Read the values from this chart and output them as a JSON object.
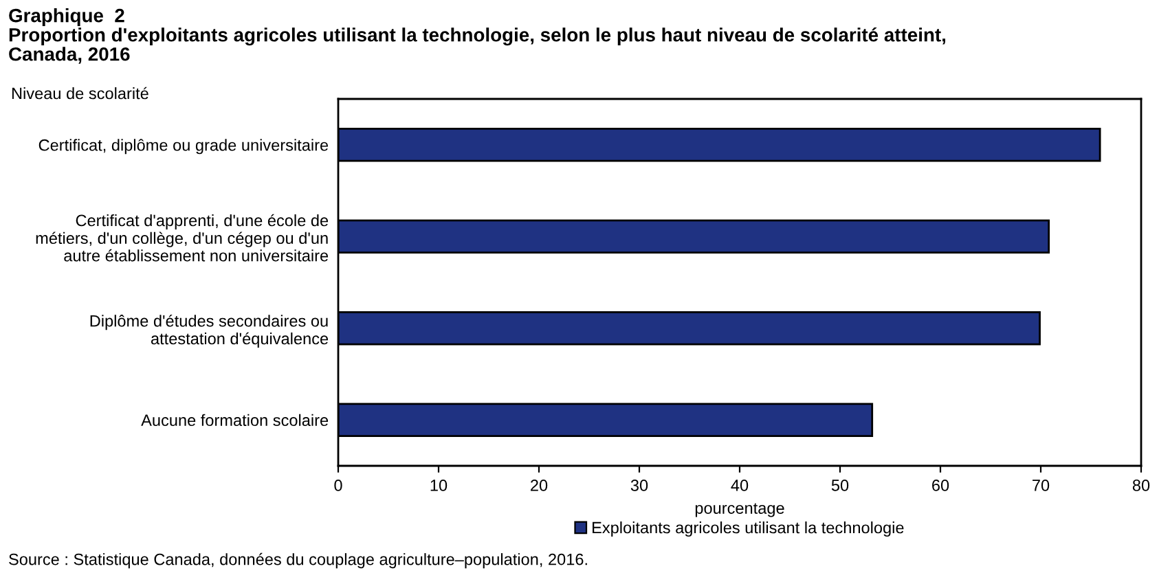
{
  "chart_data": {
    "type": "bar",
    "orientation": "horizontal",
    "title": "Graphique  2\nProportion d'exploitants agricoles utilisant la technologie, selon le plus haut niveau de scolarité atteint,\nCanada, 2016",
    "ylabel": "Niveau de scolarité",
    "xlabel": "pourcentage",
    "categories": [
      "Certificat, diplôme ou grade universitaire",
      "Certificat d'apprenti, d'une école de\nmétiers, d'un collège, d'un cégep ou d'un\nautre établissement non universitaire",
      "Diplôme d'études secondaires ou\nattestation d'équivalence",
      "Aucune formation scolaire"
    ],
    "series": [
      {
        "name": "Exploitants agricoles utilisant la technologie",
        "color": "#1f3282",
        "values": [
          75.9,
          70.8,
          69.9,
          53.2
        ]
      }
    ],
    "xlim": [
      0,
      80
    ],
    "xticks": [
      0,
      10,
      20,
      30,
      40,
      50,
      60,
      70,
      80
    ],
    "grid": false,
    "legend": "bottom",
    "annotations": [
      "Source : Statistique Canada, données du couplage agriculture–population, 2016."
    ]
  }
}
